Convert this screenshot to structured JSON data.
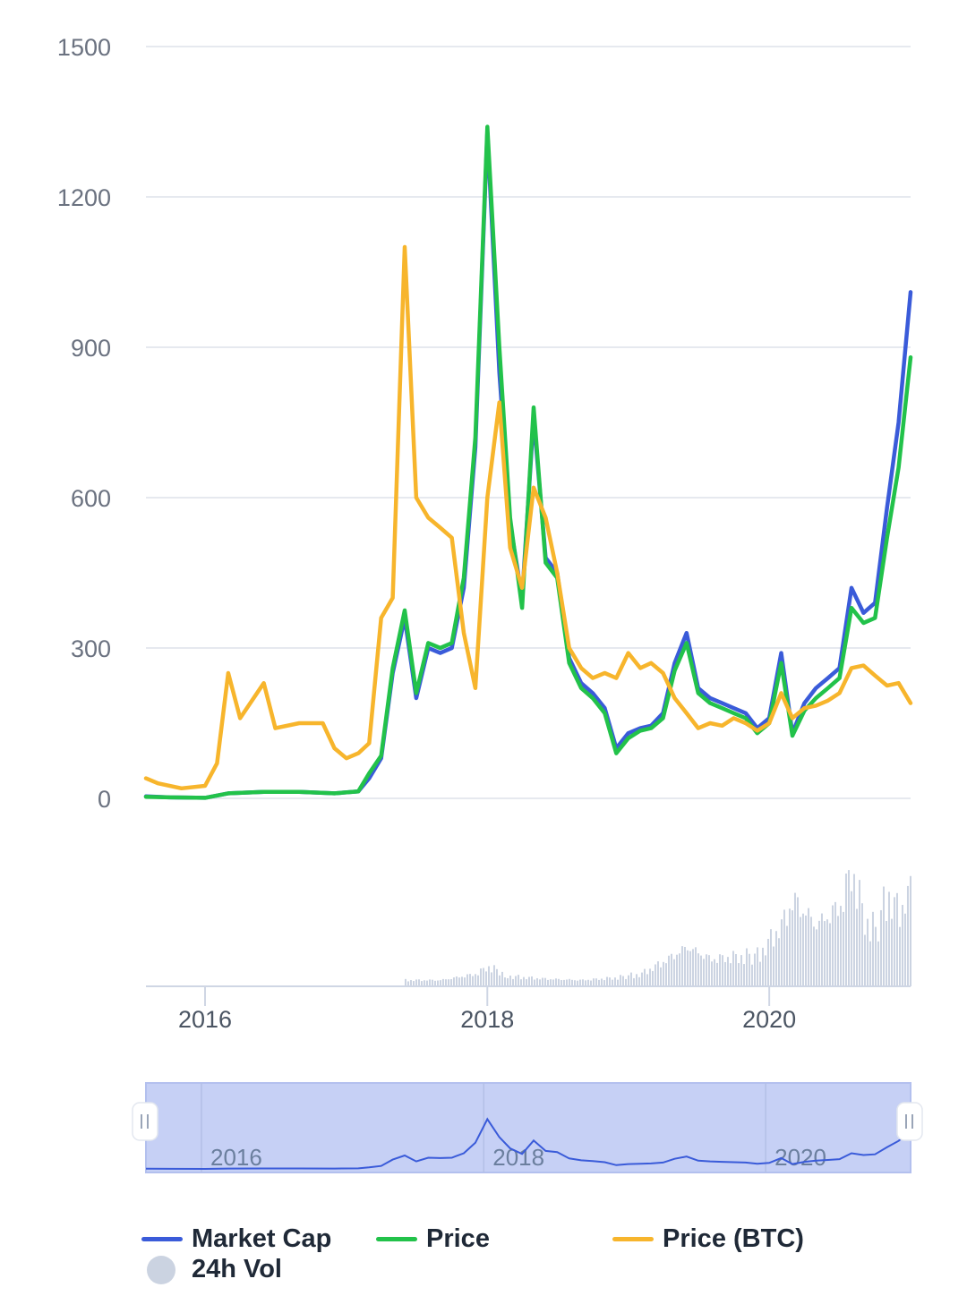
{
  "chart_data": {
    "type": "line",
    "title": "",
    "xlabel": "",
    "ylabel": "",
    "ylim": [
      0,
      1500
    ],
    "y_ticks": [
      "0",
      "300",
      "600",
      "900",
      "1200",
      "1500"
    ],
    "x_ticks": [
      "2016",
      "2018",
      "2020"
    ],
    "navigator_ticks": [
      "2016",
      "2018",
      "2020"
    ],
    "grid": true,
    "legend_position": "bottom",
    "series": [
      {
        "name": "Market Cap",
        "color": "#3a5bd9",
        "points": [
          [
            "2015-08",
            4
          ],
          [
            "2015-10",
            2
          ],
          [
            "2016-01",
            1
          ],
          [
            "2016-03",
            10
          ],
          [
            "2016-06",
            13
          ],
          [
            "2016-09",
            13
          ],
          [
            "2016-12",
            10
          ],
          [
            "2017-02",
            14
          ],
          [
            "2017-03",
            40
          ],
          [
            "2017-04",
            80
          ],
          [
            "2017-05",
            250
          ],
          [
            "2017-06",
            360
          ],
          [
            "2017-07",
            200
          ],
          [
            "2017-08",
            300
          ],
          [
            "2017-09",
            290
          ],
          [
            "2017-10",
            300
          ],
          [
            "2017-11",
            420
          ],
          [
            "2017-12",
            700
          ],
          [
            "2018-01",
            1330
          ],
          [
            "2018-02",
            850
          ],
          [
            "2018-03",
            550
          ],
          [
            "2018-04",
            400
          ],
          [
            "2018-05",
            760
          ],
          [
            "2018-06",
            480
          ],
          [
            "2018-07",
            450
          ],
          [
            "2018-08",
            280
          ],
          [
            "2018-09",
            230
          ],
          [
            "2018-10",
            210
          ],
          [
            "2018-11",
            180
          ],
          [
            "2018-12",
            100
          ],
          [
            "2019-01",
            130
          ],
          [
            "2019-02",
            140
          ],
          [
            "2019-03",
            145
          ],
          [
            "2019-04",
            170
          ],
          [
            "2019-05",
            270
          ],
          [
            "2019-06",
            330
          ],
          [
            "2019-07",
            220
          ],
          [
            "2019-08",
            200
          ],
          [
            "2019-09",
            190
          ],
          [
            "2019-10",
            180
          ],
          [
            "2019-11",
            170
          ],
          [
            "2019-12",
            140
          ],
          [
            "2020-01",
            160
          ],
          [
            "2020-02",
            290
          ],
          [
            "2020-03",
            130
          ],
          [
            "2020-04",
            190
          ],
          [
            "2020-05",
            220
          ],
          [
            "2020-06",
            240
          ],
          [
            "2020-07",
            260
          ],
          [
            "2020-08",
            420
          ],
          [
            "2020-09",
            370
          ],
          [
            "2020-10",
            390
          ],
          [
            "2020-11",
            580
          ],
          [
            "2020-12",
            750
          ],
          [
            "2021-01",
            1010
          ]
        ]
      },
      {
        "name": "Price",
        "color": "#22c24a",
        "points": [
          [
            "2015-08",
            3
          ],
          [
            "2015-10",
            2
          ],
          [
            "2016-01",
            1
          ],
          [
            "2016-03",
            10
          ],
          [
            "2016-06",
            13
          ],
          [
            "2016-09",
            13
          ],
          [
            "2016-12",
            10
          ],
          [
            "2017-02",
            14
          ],
          [
            "2017-03",
            50
          ],
          [
            "2017-04",
            85
          ],
          [
            "2017-05",
            260
          ],
          [
            "2017-06",
            375
          ],
          [
            "2017-07",
            210
          ],
          [
            "2017-08",
            310
          ],
          [
            "2017-09",
            300
          ],
          [
            "2017-10",
            310
          ],
          [
            "2017-11",
            440
          ],
          [
            "2017-12",
            720
          ],
          [
            "2018-01",
            1340
          ],
          [
            "2018-02",
            900
          ],
          [
            "2018-03",
            560
          ],
          [
            "2018-04",
            380
          ],
          [
            "2018-05",
            780
          ],
          [
            "2018-06",
            470
          ],
          [
            "2018-07",
            440
          ],
          [
            "2018-08",
            270
          ],
          [
            "2018-09",
            220
          ],
          [
            "2018-10",
            200
          ],
          [
            "2018-11",
            170
          ],
          [
            "2018-12",
            90
          ],
          [
            "2019-01",
            120
          ],
          [
            "2019-02",
            135
          ],
          [
            "2019-03",
            140
          ],
          [
            "2019-04",
            160
          ],
          [
            "2019-05",
            255
          ],
          [
            "2019-06",
            310
          ],
          [
            "2019-07",
            210
          ],
          [
            "2019-08",
            190
          ],
          [
            "2019-09",
            180
          ],
          [
            "2019-10",
            170
          ],
          [
            "2019-11",
            160
          ],
          [
            "2019-12",
            130
          ],
          [
            "2020-01",
            150
          ],
          [
            "2020-02",
            270
          ],
          [
            "2020-03",
            125
          ],
          [
            "2020-04",
            175
          ],
          [
            "2020-05",
            200
          ],
          [
            "2020-06",
            220
          ],
          [
            "2020-07",
            240
          ],
          [
            "2020-08",
            380
          ],
          [
            "2020-09",
            350
          ],
          [
            "2020-10",
            360
          ],
          [
            "2020-11",
            520
          ],
          [
            "2020-12",
            660
          ],
          [
            "2021-01",
            880
          ]
        ]
      },
      {
        "name": "Price (BTC)",
        "color": "#f7b52c",
        "points": [
          [
            "2015-08",
            40
          ],
          [
            "2015-09",
            30
          ],
          [
            "2015-11",
            20
          ],
          [
            "2016-01",
            25
          ],
          [
            "2016-02",
            70
          ],
          [
            "2016-03",
            250
          ],
          [
            "2016-04",
            160
          ],
          [
            "2016-06",
            230
          ],
          [
            "2016-07",
            140
          ],
          [
            "2016-09",
            150
          ],
          [
            "2016-11",
            150
          ],
          [
            "2016-12",
            100
          ],
          [
            "2017-01",
            80
          ],
          [
            "2017-02",
            90
          ],
          [
            "2017-03",
            110
          ],
          [
            "2017-04",
            360
          ],
          [
            "2017-05",
            400
          ],
          [
            "2017-06",
            1100
          ],
          [
            "2017-07",
            600
          ],
          [
            "2017-08",
            560
          ],
          [
            "2017-09",
            540
          ],
          [
            "2017-10",
            520
          ],
          [
            "2017-11",
            330
          ],
          [
            "2017-12",
            220
          ],
          [
            "2018-01",
            600
          ],
          [
            "2018-02",
            790
          ],
          [
            "2018-03",
            500
          ],
          [
            "2018-04",
            420
          ],
          [
            "2018-05",
            620
          ],
          [
            "2018-06",
            560
          ],
          [
            "2018-07",
            450
          ],
          [
            "2018-08",
            300
          ],
          [
            "2018-09",
            260
          ],
          [
            "2018-10",
            240
          ],
          [
            "2018-11",
            250
          ],
          [
            "2018-12",
            240
          ],
          [
            "2019-01",
            290
          ],
          [
            "2019-02",
            260
          ],
          [
            "2019-03",
            270
          ],
          [
            "2019-04",
            250
          ],
          [
            "2019-05",
            200
          ],
          [
            "2019-06",
            170
          ],
          [
            "2019-07",
            140
          ],
          [
            "2019-08",
            150
          ],
          [
            "2019-09",
            145
          ],
          [
            "2019-10",
            160
          ],
          [
            "2019-11",
            150
          ],
          [
            "2019-12",
            135
          ],
          [
            "2020-01",
            150
          ],
          [
            "2020-02",
            210
          ],
          [
            "2020-03",
            160
          ],
          [
            "2020-04",
            180
          ],
          [
            "2020-05",
            185
          ],
          [
            "2020-06",
            195
          ],
          [
            "2020-07",
            210
          ],
          [
            "2020-08",
            260
          ],
          [
            "2020-09",
            265
          ],
          [
            "2020-10",
            245
          ],
          [
            "2020-11",
            225
          ],
          [
            "2020-12",
            230
          ],
          [
            "2021-01",
            190
          ]
        ]
      }
    ],
    "volume": {
      "name": "24h Vol",
      "color": "#cbd3e1",
      "points": [
        [
          "2017-06",
          0.05
        ],
        [
          "2017-09",
          0.05
        ],
        [
          "2017-12",
          0.1
        ],
        [
          "2018-01",
          0.16
        ],
        [
          "2018-03",
          0.08
        ],
        [
          "2018-06",
          0.06
        ],
        [
          "2018-09",
          0.05
        ],
        [
          "2018-12",
          0.07
        ],
        [
          "2019-02",
          0.1
        ],
        [
          "2019-04",
          0.2
        ],
        [
          "2019-06",
          0.32
        ],
        [
          "2019-08",
          0.22
        ],
        [
          "2019-10",
          0.24
        ],
        [
          "2019-12",
          0.25
        ],
        [
          "2020-02",
          0.5
        ],
        [
          "2020-03",
          0.7
        ],
        [
          "2020-05",
          0.5
        ],
        [
          "2020-07",
          0.65
        ],
        [
          "2020-08",
          0.95
        ],
        [
          "2020-09",
          0.55
        ],
        [
          "2020-10",
          0.45
        ],
        [
          "2020-11",
          0.75
        ],
        [
          "2020-12",
          0.6
        ],
        [
          "2021-01",
          0.8
        ]
      ]
    }
  },
  "colors": {
    "grid": "#e6e9ef",
    "axis": "#cfd6e4",
    "navigator_fill": "#c6d0f5",
    "navigator_line": "#3a5bd9"
  },
  "legend": [
    {
      "label": "Market Cap",
      "color": "#3a5bd9",
      "symbol": "line"
    },
    {
      "label": "Price",
      "color": "#22c24a",
      "symbol": "line"
    },
    {
      "label": "Price (BTC)",
      "color": "#f7b52c",
      "symbol": "line"
    },
    {
      "label": "24h Vol",
      "color": "#cbd3e1",
      "symbol": "circle"
    }
  ]
}
